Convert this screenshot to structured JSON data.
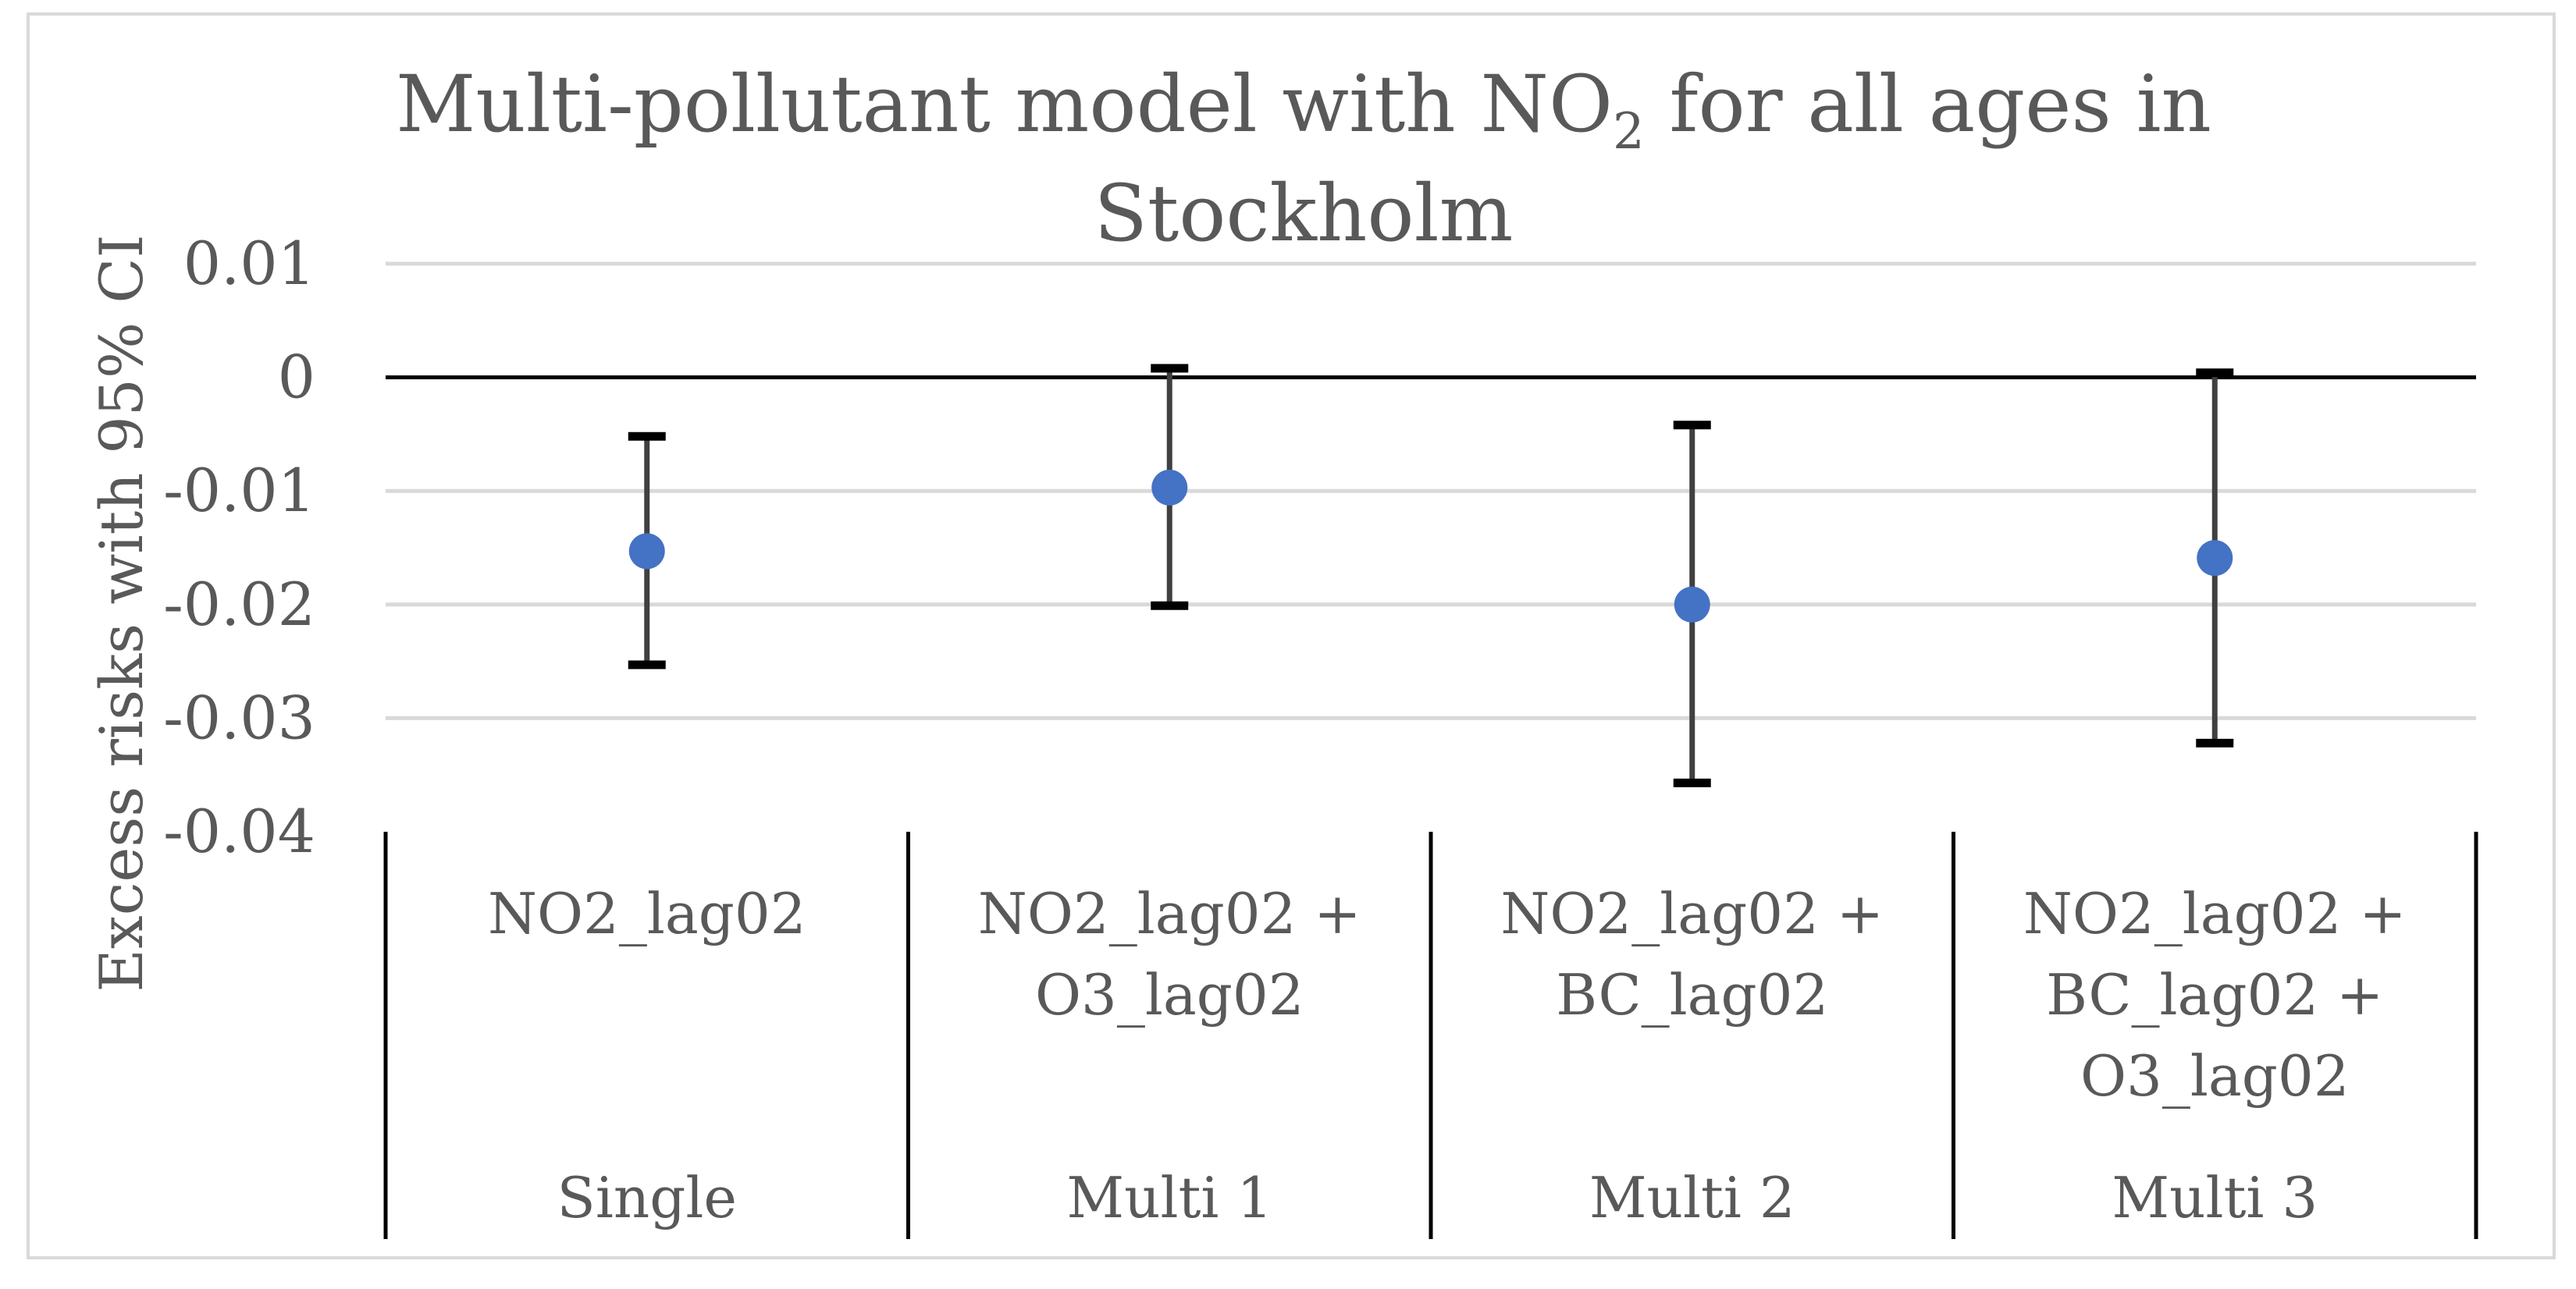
{
  "chart_data": {
    "type": "scatter",
    "title_parts": {
      "main": "Multi-pollutant model with NO",
      "sub": "2",
      "rest": " for all ages in",
      "line2": "Stockholm"
    },
    "ylabel": "Excess risks with 95% CI",
    "ylim": [
      -0.04,
      0.01
    ],
    "yticks": [
      {
        "value": 0.01,
        "label": "0.01"
      },
      {
        "value": 0,
        "label": "0"
      },
      {
        "value": -0.01,
        "label": "-0.01"
      },
      {
        "value": -0.02,
        "label": "-0.02"
      },
      {
        "value": -0.03,
        "label": "-0.03"
      },
      {
        "value": -0.04,
        "label": "-0.04"
      }
    ],
    "grid": true,
    "categories": [
      {
        "model": "Single",
        "lines": [
          "NO2_lag02"
        ]
      },
      {
        "model": "Multi 1",
        "lines": [
          "NO2_lag02 +",
          "O3_lag02"
        ]
      },
      {
        "model": "Multi 2",
        "lines": [
          "NO2_lag02 +",
          "BC_lag02"
        ]
      },
      {
        "model": "Multi 3",
        "lines": [
          "NO2_lag02 +",
          "BC_lag02 +",
          "O3_lag02"
        ]
      }
    ],
    "points": [
      {
        "estimate": -0.0153,
        "lower": -0.0253,
        "upper": -0.0052
      },
      {
        "estimate": -0.0097,
        "lower": -0.0201,
        "upper": 0.0008
      },
      {
        "estimate": -0.02,
        "lower": -0.0357,
        "upper": -0.0042
      },
      {
        "estimate": -0.0159,
        "lower": -0.0322,
        "upper": 0.0004
      }
    ],
    "colors": {
      "point": "#4472C4",
      "errorbar": "#404040",
      "errorcap": "#000000",
      "grid": "#D9D9D9",
      "zero_line": "#000000",
      "text": "#595959",
      "border": "#D9D9D9"
    }
  }
}
